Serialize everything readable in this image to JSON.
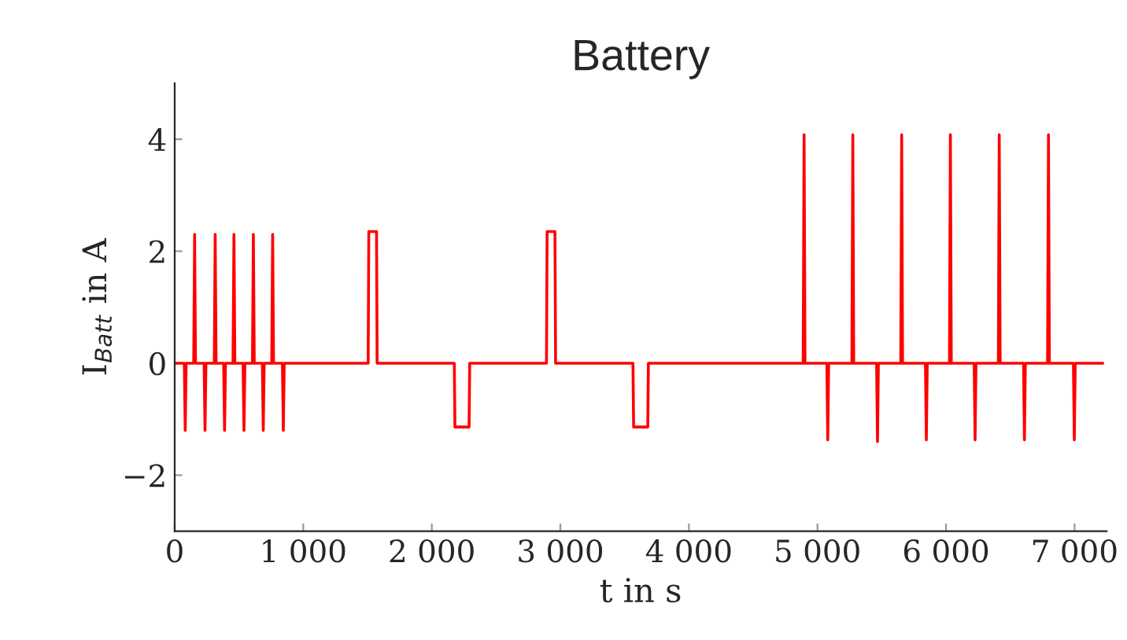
{
  "chart_data": {
    "type": "line",
    "title": "Battery",
    "xlabel": "t in s",
    "ylabel": "I$_{Batt}$ in A",
    "xlim": [
      0,
      7250
    ],
    "ylim": [
      -3,
      5
    ],
    "xticks": [
      0,
      {
        "value": 1000,
        "label": "1 000"
      },
      {
        "value": 2000,
        "label": "2 000"
      },
      {
        "value": 3000,
        "label": "3 000"
      },
      {
        "value": 4000,
        "label": "4 000"
      },
      {
        "value": 5000,
        "label": "5 000"
      },
      {
        "value": 6000,
        "label": "6 000"
      },
      {
        "value": 7000,
        "label": "7 000"
      }
    ],
    "yticks": [
      {
        "value": -2,
        "label": "−2"
      },
      0,
      2,
      4
    ],
    "grid": false,
    "marker": "none",
    "line_style": "solid",
    "series": [
      {
        "color": "#ff0000",
        "x": [
          0,
          75,
          82,
          89,
          148,
          155,
          162,
          229,
          236,
          243,
          308,
          315,
          322,
          381,
          388,
          395,
          454,
          461,
          468,
          532,
          539,
          546,
          605,
          612,
          619,
          682,
          689,
          696,
          755,
          762,
          769,
          838,
          845,
          852,
          1505,
          1510,
          1570,
          1575,
          2175,
          2180,
          2290,
          2295,
          2892,
          2897,
          2958,
          2963,
          3565,
          3570,
          3680,
          3685,
          4889,
          4896,
          4903,
          5073,
          5080,
          5087,
          5268,
          5275,
          5282,
          5460,
          5467,
          5474,
          5648,
          5655,
          5662,
          5840,
          5847,
          5854,
          6027,
          6034,
          6041,
          6219,
          6226,
          6233,
          6407,
          6414,
          6421,
          6603,
          6610,
          6617,
          6790,
          6797,
          6804,
          6991,
          6998,
          7005,
          7220
        ],
        "values": [
          0,
          0,
          -1.2,
          0,
          0,
          2.3,
          0,
          0,
          -1.2,
          0,
          0,
          2.3,
          0,
          0,
          -1.2,
          0,
          0,
          2.3,
          0,
          0,
          -1.2,
          0,
          0,
          2.3,
          0,
          0,
          -1.2,
          0,
          0,
          2.3,
          0,
          0,
          -1.2,
          0,
          0,
          2.35,
          2.35,
          0,
          0,
          -1.14,
          -1.14,
          0,
          0,
          2.35,
          2.35,
          0,
          0,
          -1.14,
          -1.14,
          0,
          0,
          4.08,
          0,
          0,
          -1.37,
          0,
          0,
          4.08,
          0,
          0,
          -1.4,
          0,
          0,
          4.08,
          0,
          0,
          -1.37,
          0,
          0,
          4.08,
          0,
          0,
          -1.37,
          0,
          0,
          4.08,
          0,
          0,
          -1.37,
          0,
          0,
          4.08,
          0,
          0,
          -1.37,
          0,
          0
        ]
      }
    ]
  }
}
